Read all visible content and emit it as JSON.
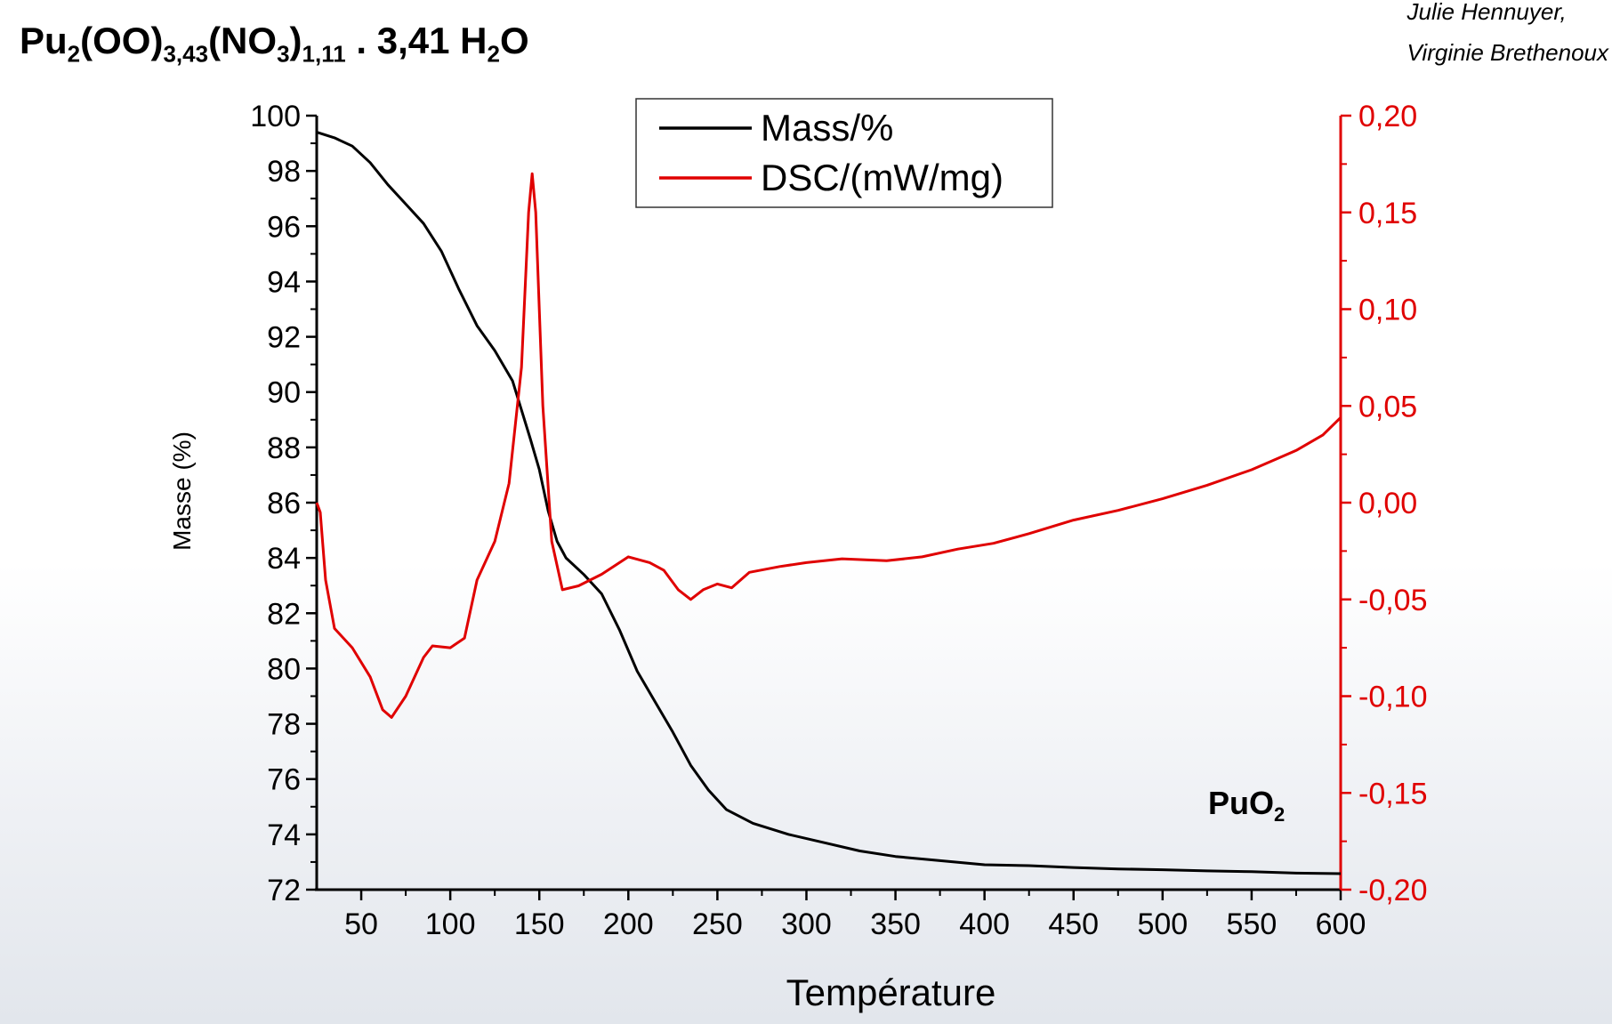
{
  "header": {
    "formula": {
      "parts": [
        {
          "t": "Pu"
        },
        {
          "s": "2"
        },
        {
          "t": "(OO)"
        },
        {
          "s": "3,43"
        },
        {
          "t": "(NO"
        },
        {
          "s": "3"
        },
        {
          "t": ")"
        },
        {
          "s": "1,11"
        },
        {
          "t": " . 3,41 H"
        },
        {
          "s": "2"
        },
        {
          "t": "O"
        }
      ]
    },
    "authors": [
      "Julie Hennuyer,",
      "Virginie Brethenoux"
    ]
  },
  "annotation": {
    "base": "PuO",
    "sub": "2"
  },
  "colors": {
    "mass": "#000000",
    "dsc": "#e00000",
    "axis": "#000000"
  },
  "chart_data": {
    "type": "line",
    "title": "",
    "xlabel": "Température",
    "ylabel": "Masse (%)",
    "y2label": "",
    "xlim": [
      25,
      600
    ],
    "ylim": [
      72,
      100
    ],
    "y2lim": [
      -0.2,
      0.2
    ],
    "x_ticks": [
      50,
      100,
      150,
      200,
      250,
      300,
      350,
      400,
      450,
      500,
      550,
      600
    ],
    "y_ticks": [
      72,
      74,
      76,
      78,
      80,
      82,
      84,
      86,
      88,
      90,
      92,
      94,
      96,
      98,
      100
    ],
    "y2_ticks": [
      "-0,20",
      "-0,15",
      "-0,10",
      "-0,05",
      "0,00",
      "0,05",
      "0,10",
      "0,15",
      "0,20"
    ],
    "legend": {
      "position": "top-center",
      "entries": [
        "Mass/%",
        "DSC/(mW/mg)"
      ]
    },
    "grid": false,
    "series": [
      {
        "name": "Mass/%",
        "axis": "left",
        "color": "#000000",
        "points": [
          [
            25,
            99.4
          ],
          [
            35,
            99.2
          ],
          [
            45,
            98.9
          ],
          [
            55,
            98.3
          ],
          [
            65,
            97.5
          ],
          [
            75,
            96.8
          ],
          [
            85,
            96.1
          ],
          [
            95,
            95.1
          ],
          [
            105,
            93.7
          ],
          [
            115,
            92.4
          ],
          [
            125,
            91.5
          ],
          [
            135,
            90.4
          ],
          [
            145,
            88.3
          ],
          [
            150,
            87.2
          ],
          [
            155,
            85.7
          ],
          [
            160,
            84.6
          ],
          [
            165,
            84.0
          ],
          [
            175,
            83.4
          ],
          [
            185,
            82.7
          ],
          [
            195,
            81.4
          ],
          [
            205,
            79.9
          ],
          [
            215,
            78.8
          ],
          [
            225,
            77.7
          ],
          [
            235,
            76.5
          ],
          [
            245,
            75.6
          ],
          [
            255,
            74.9
          ],
          [
            270,
            74.4
          ],
          [
            290,
            74.0
          ],
          [
            310,
            73.7
          ],
          [
            330,
            73.4
          ],
          [
            350,
            73.2
          ],
          [
            375,
            73.05
          ],
          [
            400,
            72.9
          ],
          [
            425,
            72.87
          ],
          [
            450,
            72.8
          ],
          [
            475,
            72.75
          ],
          [
            500,
            72.72
          ],
          [
            525,
            72.68
          ],
          [
            550,
            72.65
          ],
          [
            575,
            72.6
          ],
          [
            600,
            72.58
          ]
        ]
      },
      {
        "name": "DSC/(mW/mg)",
        "axis": "right",
        "color": "#e00000",
        "points": [
          [
            25,
            0.0
          ],
          [
            27,
            -0.005
          ],
          [
            30,
            -0.04
          ],
          [
            35,
            -0.065
          ],
          [
            45,
            -0.075
          ],
          [
            55,
            -0.09
          ],
          [
            62,
            -0.107
          ],
          [
            67,
            -0.111
          ],
          [
            75,
            -0.1
          ],
          [
            85,
            -0.08
          ],
          [
            90,
            -0.074
          ],
          [
            100,
            -0.075
          ],
          [
            108,
            -0.07
          ],
          [
            115,
            -0.04
          ],
          [
            125,
            -0.02
          ],
          [
            133,
            0.01
          ],
          [
            140,
            0.07
          ],
          [
            144,
            0.15
          ],
          [
            146,
            0.17
          ],
          [
            148,
            0.15
          ],
          [
            152,
            0.05
          ],
          [
            157,
            -0.02
          ],
          [
            163,
            -0.045
          ],
          [
            172,
            -0.043
          ],
          [
            185,
            -0.037
          ],
          [
            200,
            -0.028
          ],
          [
            212,
            -0.031
          ],
          [
            220,
            -0.035
          ],
          [
            228,
            -0.045
          ],
          [
            235,
            -0.05
          ],
          [
            242,
            -0.045
          ],
          [
            250,
            -0.042
          ],
          [
            258,
            -0.044
          ],
          [
            268,
            -0.036
          ],
          [
            285,
            -0.033
          ],
          [
            300,
            -0.031
          ],
          [
            320,
            -0.029
          ],
          [
            345,
            -0.03
          ],
          [
            365,
            -0.028
          ],
          [
            385,
            -0.024
          ],
          [
            405,
            -0.021
          ],
          [
            425,
            -0.016
          ],
          [
            450,
            -0.009
          ],
          [
            475,
            -0.004
          ],
          [
            500,
            0.002
          ],
          [
            525,
            0.009
          ],
          [
            550,
            0.017
          ],
          [
            575,
            0.027
          ],
          [
            590,
            0.035
          ],
          [
            600,
            0.044
          ]
        ]
      }
    ]
  }
}
